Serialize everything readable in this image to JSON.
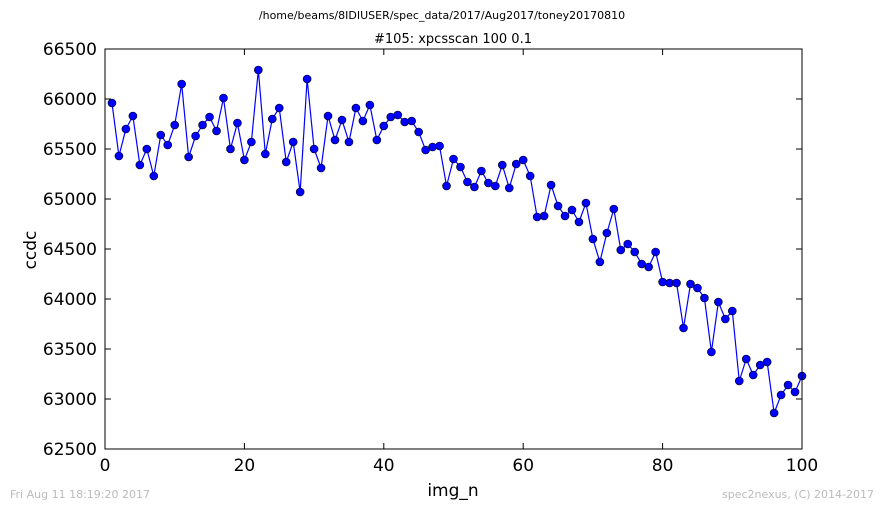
{
  "header": {
    "path": "/home/beams/8IDIUSER/spec_data/2017/Aug2017/toney20170810"
  },
  "footer": {
    "timestamp": "Fri Aug 11 18:19:20 2017",
    "credit": "spec2nexus, (C) 2014-2017"
  },
  "chart_data": {
    "type": "line",
    "title": "#105: xpcsscan 100 0.1",
    "xlabel": "img_n",
    "ylabel": "ccdc",
    "xlim": [
      0,
      100
    ],
    "ylim": [
      62500,
      66500
    ],
    "xticks": [
      "0",
      "20",
      "40",
      "60",
      "80",
      "100"
    ],
    "yticks": [
      "62500",
      "63000",
      "63500",
      "64000",
      "64500",
      "65000",
      "65500",
      "66000",
      "66500"
    ],
    "grid": false,
    "marker": "circle",
    "color": "#0000ff",
    "series": [
      {
        "x": [
          1,
          2,
          3,
          4,
          5,
          6,
          7,
          8,
          9,
          10,
          11,
          12,
          13,
          14,
          15,
          16,
          17,
          18,
          19,
          20,
          21,
          22,
          23,
          24,
          25,
          26,
          27,
          28,
          29,
          30,
          31,
          32,
          33,
          34,
          35,
          36,
          37,
          38,
          39,
          40,
          41,
          42,
          43,
          44,
          45,
          46,
          47,
          48,
          49,
          50,
          51,
          52,
          53,
          54,
          55,
          56,
          57,
          58,
          59,
          60,
          61,
          62,
          63,
          64,
          65,
          66,
          67,
          68,
          69,
          70,
          71,
          72,
          73,
          74,
          75,
          76,
          77,
          78,
          79,
          80,
          81,
          82,
          83,
          84,
          85,
          86,
          87,
          88,
          89,
          90,
          91,
          92,
          93,
          94,
          95,
          96,
          97,
          98,
          99,
          100
        ],
        "y": [
          65960,
          65430,
          65700,
          65830,
          65340,
          65500,
          65230,
          65640,
          65540,
          65740,
          66150,
          65420,
          65630,
          65740,
          65820,
          65680,
          66010,
          65500,
          65760,
          65390,
          65570,
          66290,
          65450,
          65800,
          65910,
          65370,
          65570,
          65070,
          66200,
          65500,
          65310,
          65830,
          65590,
          65790,
          65570,
          65910,
          65780,
          65940,
          65590,
          65730,
          65820,
          65840,
          65770,
          65780,
          65670,
          65490,
          65520,
          65530,
          65130,
          65400,
          65320,
          65170,
          65120,
          65280,
          65160,
          65130,
          65340,
          65110,
          65350,
          65390,
          65230,
          64820,
          64830,
          65140,
          64930,
          64830,
          64890,
          64770,
          64960,
          64600,
          64370,
          64660,
          64900,
          64490,
          64550,
          64470,
          64350,
          64320,
          64470,
          64170,
          64160,
          64160,
          63710,
          64150,
          64110,
          64010,
          63470,
          63970,
          63800,
          63880,
          63180,
          63400,
          63240,
          63340,
          63370,
          62860,
          63040,
          63140,
          63070,
          63230
        ]
      }
    ]
  }
}
